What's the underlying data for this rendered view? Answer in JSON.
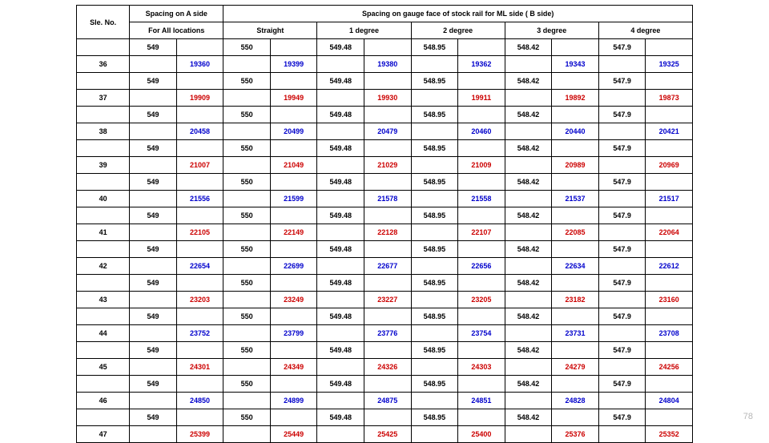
{
  "page_number": "78",
  "table": {
    "type": "table",
    "background_color": "#ffffff",
    "border_color": "#000000",
    "font_family": "Arial, sans-serif",
    "font_size_pt": 9,
    "font_weight": "bold",
    "text_align": "center",
    "colors": {
      "black": "#000000",
      "blue": "#0000cc",
      "red": "#cc0000"
    },
    "column_widths_pct": {
      "sle": 8,
      "other": 7.0769
    },
    "headers": {
      "sle": "Sle. No.",
      "a_side_group": "Spacing on A side",
      "a_side_sub": "For All locations",
      "ml_group": "Spacing on gauge face of stock rail for ML side ( B side)",
      "ml_subs": [
        "Straight",
        "1 degree",
        "2 degree",
        "3 degree",
        "4 degree"
      ]
    },
    "spacing_row": {
      "a": "549",
      "straight": "550",
      "d1": "549.48",
      "d2": "548.95",
      "d3": "548.42",
      "d4": "547.9"
    },
    "rows": [
      {
        "sle": "36",
        "a": "19360",
        "straight": "19399",
        "d1": "19380",
        "d2": "19362",
        "d3": "19343",
        "d4": "19325",
        "color": "blue"
      },
      {
        "sle": "37",
        "a": "19909",
        "straight": "19949",
        "d1": "19930",
        "d2": "19911",
        "d3": "19892",
        "d4": "19873",
        "color": "red"
      },
      {
        "sle": "38",
        "a": "20458",
        "straight": "20499",
        "d1": "20479",
        "d2": "20460",
        "d3": "20440",
        "d4": "20421",
        "color": "blue"
      },
      {
        "sle": "39",
        "a": "21007",
        "straight": "21049",
        "d1": "21029",
        "d2": "21009",
        "d3": "20989",
        "d4": "20969",
        "color": "red"
      },
      {
        "sle": "40",
        "a": "21556",
        "straight": "21599",
        "d1": "21578",
        "d2": "21558",
        "d3": "21537",
        "d4": "21517",
        "color": "blue"
      },
      {
        "sle": "41",
        "a": "22105",
        "straight": "22149",
        "d1": "22128",
        "d2": "22107",
        "d3": "22085",
        "d4": "22064",
        "color": "red"
      },
      {
        "sle": "42",
        "a": "22654",
        "straight": "22699",
        "d1": "22677",
        "d2": "22656",
        "d3": "22634",
        "d4": "22612",
        "color": "blue"
      },
      {
        "sle": "43",
        "a": "23203",
        "straight": "23249",
        "d1": "23227",
        "d2": "23205",
        "d3": "23182",
        "d4": "23160",
        "color": "red"
      },
      {
        "sle": "44",
        "a": "23752",
        "straight": "23799",
        "d1": "23776",
        "d2": "23754",
        "d3": "23731",
        "d4": "23708",
        "color": "blue"
      },
      {
        "sle": "45",
        "a": "24301",
        "straight": "24349",
        "d1": "24326",
        "d2": "24303",
        "d3": "24279",
        "d4": "24256",
        "color": "red"
      },
      {
        "sle": "46",
        "a": "24850",
        "straight": "24899",
        "d1": "24875",
        "d2": "24851",
        "d3": "24828",
        "d4": "24804",
        "color": "blue"
      },
      {
        "sle": "47",
        "a": "25399",
        "straight": "25449",
        "d1": "25425",
        "d2": "25400",
        "d3": "25376",
        "d4": "25352",
        "color": "red"
      }
    ],
    "include_trailing_spacing": false
  }
}
